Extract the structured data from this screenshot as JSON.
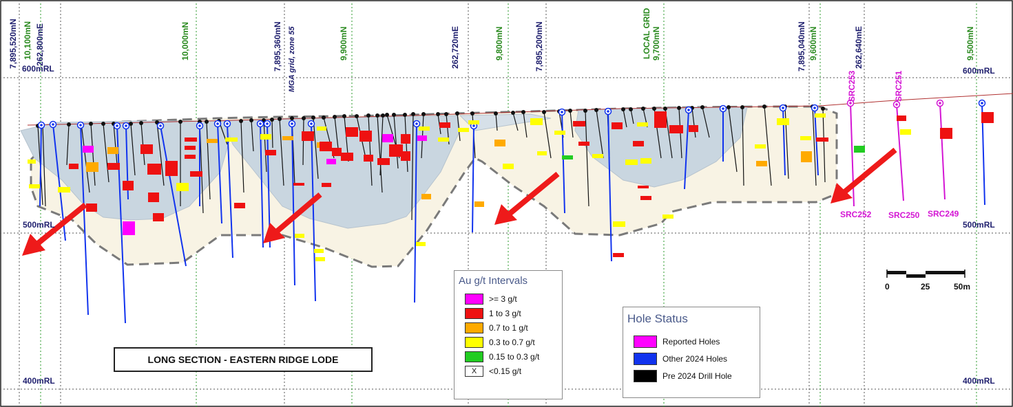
{
  "grid_labels_top": [
    {
      "text": "7,895,520mN",
      "kind": "blue"
    },
    {
      "text": "10,100mN",
      "kind": "green"
    },
    {
      "text": "262,800mE",
      "kind": "blue"
    },
    {
      "text": "10,000mN",
      "kind": "green"
    },
    {
      "text": "7,895,360mN",
      "kind": "blue"
    },
    {
      "text": "MGA grid, zone 55",
      "kind": "blue"
    },
    {
      "text": "9,900mN",
      "kind": "green"
    },
    {
      "text": "262,720mE",
      "kind": "blue"
    },
    {
      "text": "9,800mN",
      "kind": "green"
    },
    {
      "text": "7,895,200mN",
      "kind": "blue"
    },
    {
      "text": "LOCAL GRID",
      "kind": "green"
    },
    {
      "text": "9,700mN",
      "kind": "green"
    },
    {
      "text": "7,895,040mN",
      "kind": "blue"
    },
    {
      "text": "9,600mN",
      "kind": "green"
    },
    {
      "text": "262,640mE",
      "kind": "blue"
    },
    {
      "text": "9,500mN",
      "kind": "green"
    }
  ],
  "rl_labels": [
    "600mRL",
    "600mRL",
    "500mRL",
    "500mRL",
    "400mRL",
    "400mRL"
  ],
  "hole_labels": [
    "SRC253",
    "SRC251",
    "SRC252",
    "SRC250",
    "SRC249"
  ],
  "title": "LONG SECTION - EASTERN RIDGE LODE",
  "au_legend": {
    "title": "Au g/t Intervals",
    "items": [
      {
        "label": ">= 3 g/t",
        "color": "#ff00ff"
      },
      {
        "label": "1 to 3 g/t",
        "color": "#ee1111"
      },
      {
        "label": "0.7 to 1 g/t",
        "color": "#ffaa00"
      },
      {
        "label": "0.3 to 0.7 g/t",
        "color": "#ffff00"
      },
      {
        "label": "0.15 to 0.3 g/t",
        "color": "#22cc22"
      },
      {
        "label": "<0.15 g/t",
        "color": "#ffffff",
        "mark": "X"
      }
    ]
  },
  "hole_legend": {
    "title": "Hole Status",
    "items": [
      {
        "label": "Reported Holes",
        "color": "#ff00ff"
      },
      {
        "label": "Other 2024 Holes",
        "color": "#1133ee"
      },
      {
        "label": "Pre 2024 Drill Hole",
        "color": "#000000"
      }
    ]
  },
  "scale_bar": {
    "labels": [
      "0",
      "25",
      "50m"
    ]
  },
  "colors": {
    "reported": "#d416d4",
    "other2024": "#1133ee",
    "pre2024": "#111111",
    "arrow": "#ee1a1a",
    "lode": "#f8f3e4",
    "pit": "#c9d6e0"
  }
}
